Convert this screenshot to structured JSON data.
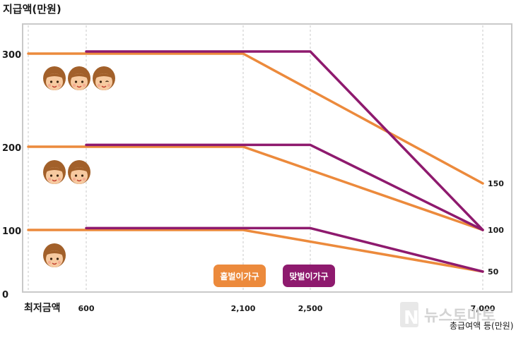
{
  "chart_data": {
    "type": "line",
    "ylabel": "지급액(만원)",
    "xlabel": "총급여액 등(만원)",
    "x_ticks": [
      {
        "x": 0,
        "label": "최저금액"
      },
      {
        "x": 600,
        "label": "600"
      },
      {
        "x": 2100,
        "label": "2,100"
      },
      {
        "x": 2500,
        "label": "2,500"
      },
      {
        "x": 7000,
        "label": "7,000"
      }
    ],
    "y_ticks": [
      {
        "y": 0,
        "label": "0"
      },
      {
        "y": 100,
        "label": "100"
      },
      {
        "y": 200,
        "label": "200"
      },
      {
        "y": 300,
        "label": "300"
      }
    ],
    "right_labels": [
      {
        "y": 150,
        "label": "150"
      },
      {
        "y": 100,
        "label": "100"
      },
      {
        "y": 50,
        "label": "50"
      }
    ],
    "ylim": [
      0,
      330
    ],
    "xlim": [
      0,
      7000
    ],
    "grid": "vertical-dashed",
    "legend": "bottom-center",
    "colors": {
      "single": "#ec8a3c",
      "dual": "#8e1a6e"
    },
    "series": [
      {
        "name": "홑벌이가구",
        "group": "single",
        "faces": 3,
        "x": [
          0,
          2100,
          7000
        ],
        "y": [
          300,
          300,
          150
        ]
      },
      {
        "name": "맞벌이가구",
        "group": "dual",
        "faces": 3,
        "x": [
          600,
          2500,
          7000
        ],
        "y": [
          302,
          302,
          100
        ]
      },
      {
        "name": "홑벌이가구",
        "group": "single",
        "faces": 2,
        "x": [
          0,
          2100,
          7000
        ],
        "y": [
          200,
          200,
          100
        ]
      },
      {
        "name": "맞벌이가구",
        "group": "dual",
        "faces": 2,
        "x": [
          600,
          2500,
          7000
        ],
        "y": [
          202,
          202,
          100
        ]
      },
      {
        "name": "홑벌이가구",
        "group": "single",
        "faces": 1,
        "x": [
          0,
          2100,
          7000
        ],
        "y": [
          100,
          100,
          50
        ]
      },
      {
        "name": "맞벌이가구",
        "group": "dual",
        "faces": 1,
        "x": [
          600,
          2500,
          7000
        ],
        "y": [
          102,
          102,
          50
        ]
      }
    ],
    "legend_items": [
      {
        "label": "홑벌이가구",
        "color": "#ec8a3c"
      },
      {
        "label": "맞벌이가구",
        "color": "#8e1a6e"
      }
    ]
  },
  "watermark": {
    "text": "뉴스토마토",
    "logo_letter": "N"
  },
  "icons": {
    "face": "child-face-icon"
  }
}
